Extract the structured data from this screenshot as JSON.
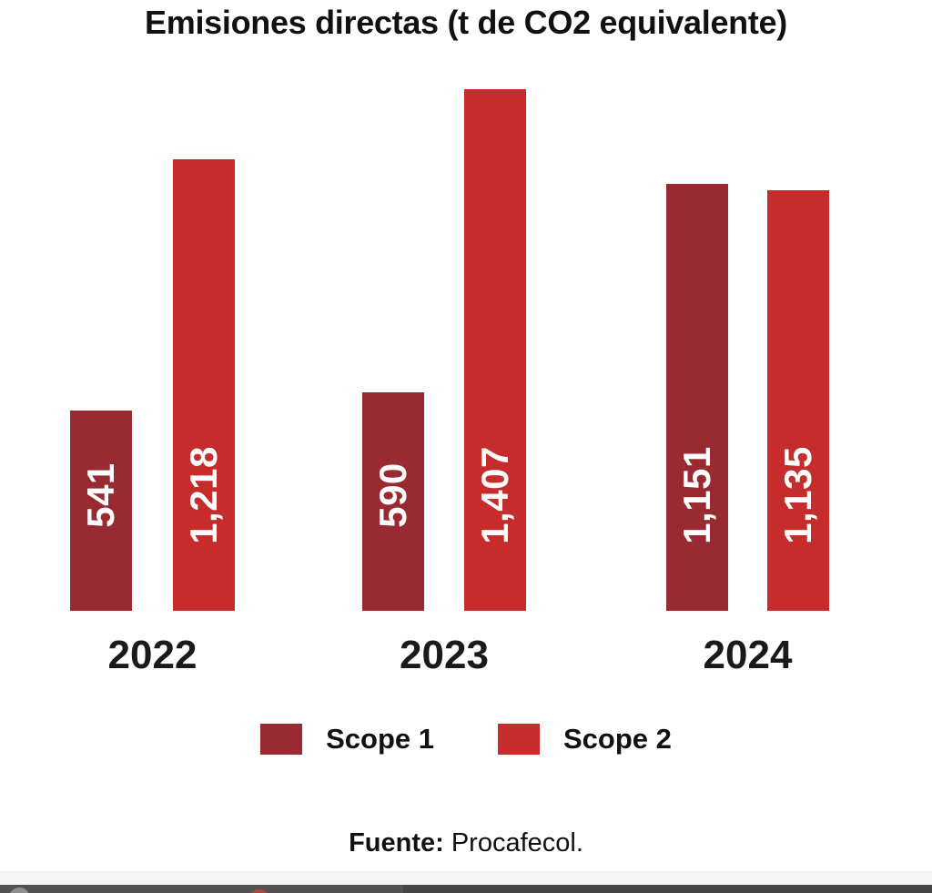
{
  "chart_data": {
    "type": "bar",
    "title": "Emisiones directas (t de CO2 equivalente)",
    "categories": [
      "2022",
      "2023",
      "2024"
    ],
    "series": [
      {
        "name": "Scope 1",
        "color": "#992A31",
        "values": [
          541,
          590,
          1151
        ],
        "labels": [
          "541",
          "590",
          "1,151"
        ]
      },
      {
        "name": "Scope 2",
        "color": "#C72C2C",
        "values": [
          1218,
          1407,
          1135
        ],
        "labels": [
          "1,218",
          "1,407",
          "1,135"
        ]
      }
    ],
    "ylim": [
      0,
      1407
    ],
    "grid": false,
    "axes_shown": false,
    "legend_position": "bottom",
    "value_label_style": {
      "color": "#ffffff",
      "rotation": -90,
      "position": "inside-bottom"
    }
  },
  "source": {
    "label": "Fuente:",
    "text": "Procafecol."
  },
  "bottom_toolbar": {
    "strip_color": "#f5f5f6",
    "bar_left_color": "#515151",
    "bar_right_color": "#454545",
    "circle_color": "#8f8f8f",
    "dot_color": "#b8433e"
  }
}
